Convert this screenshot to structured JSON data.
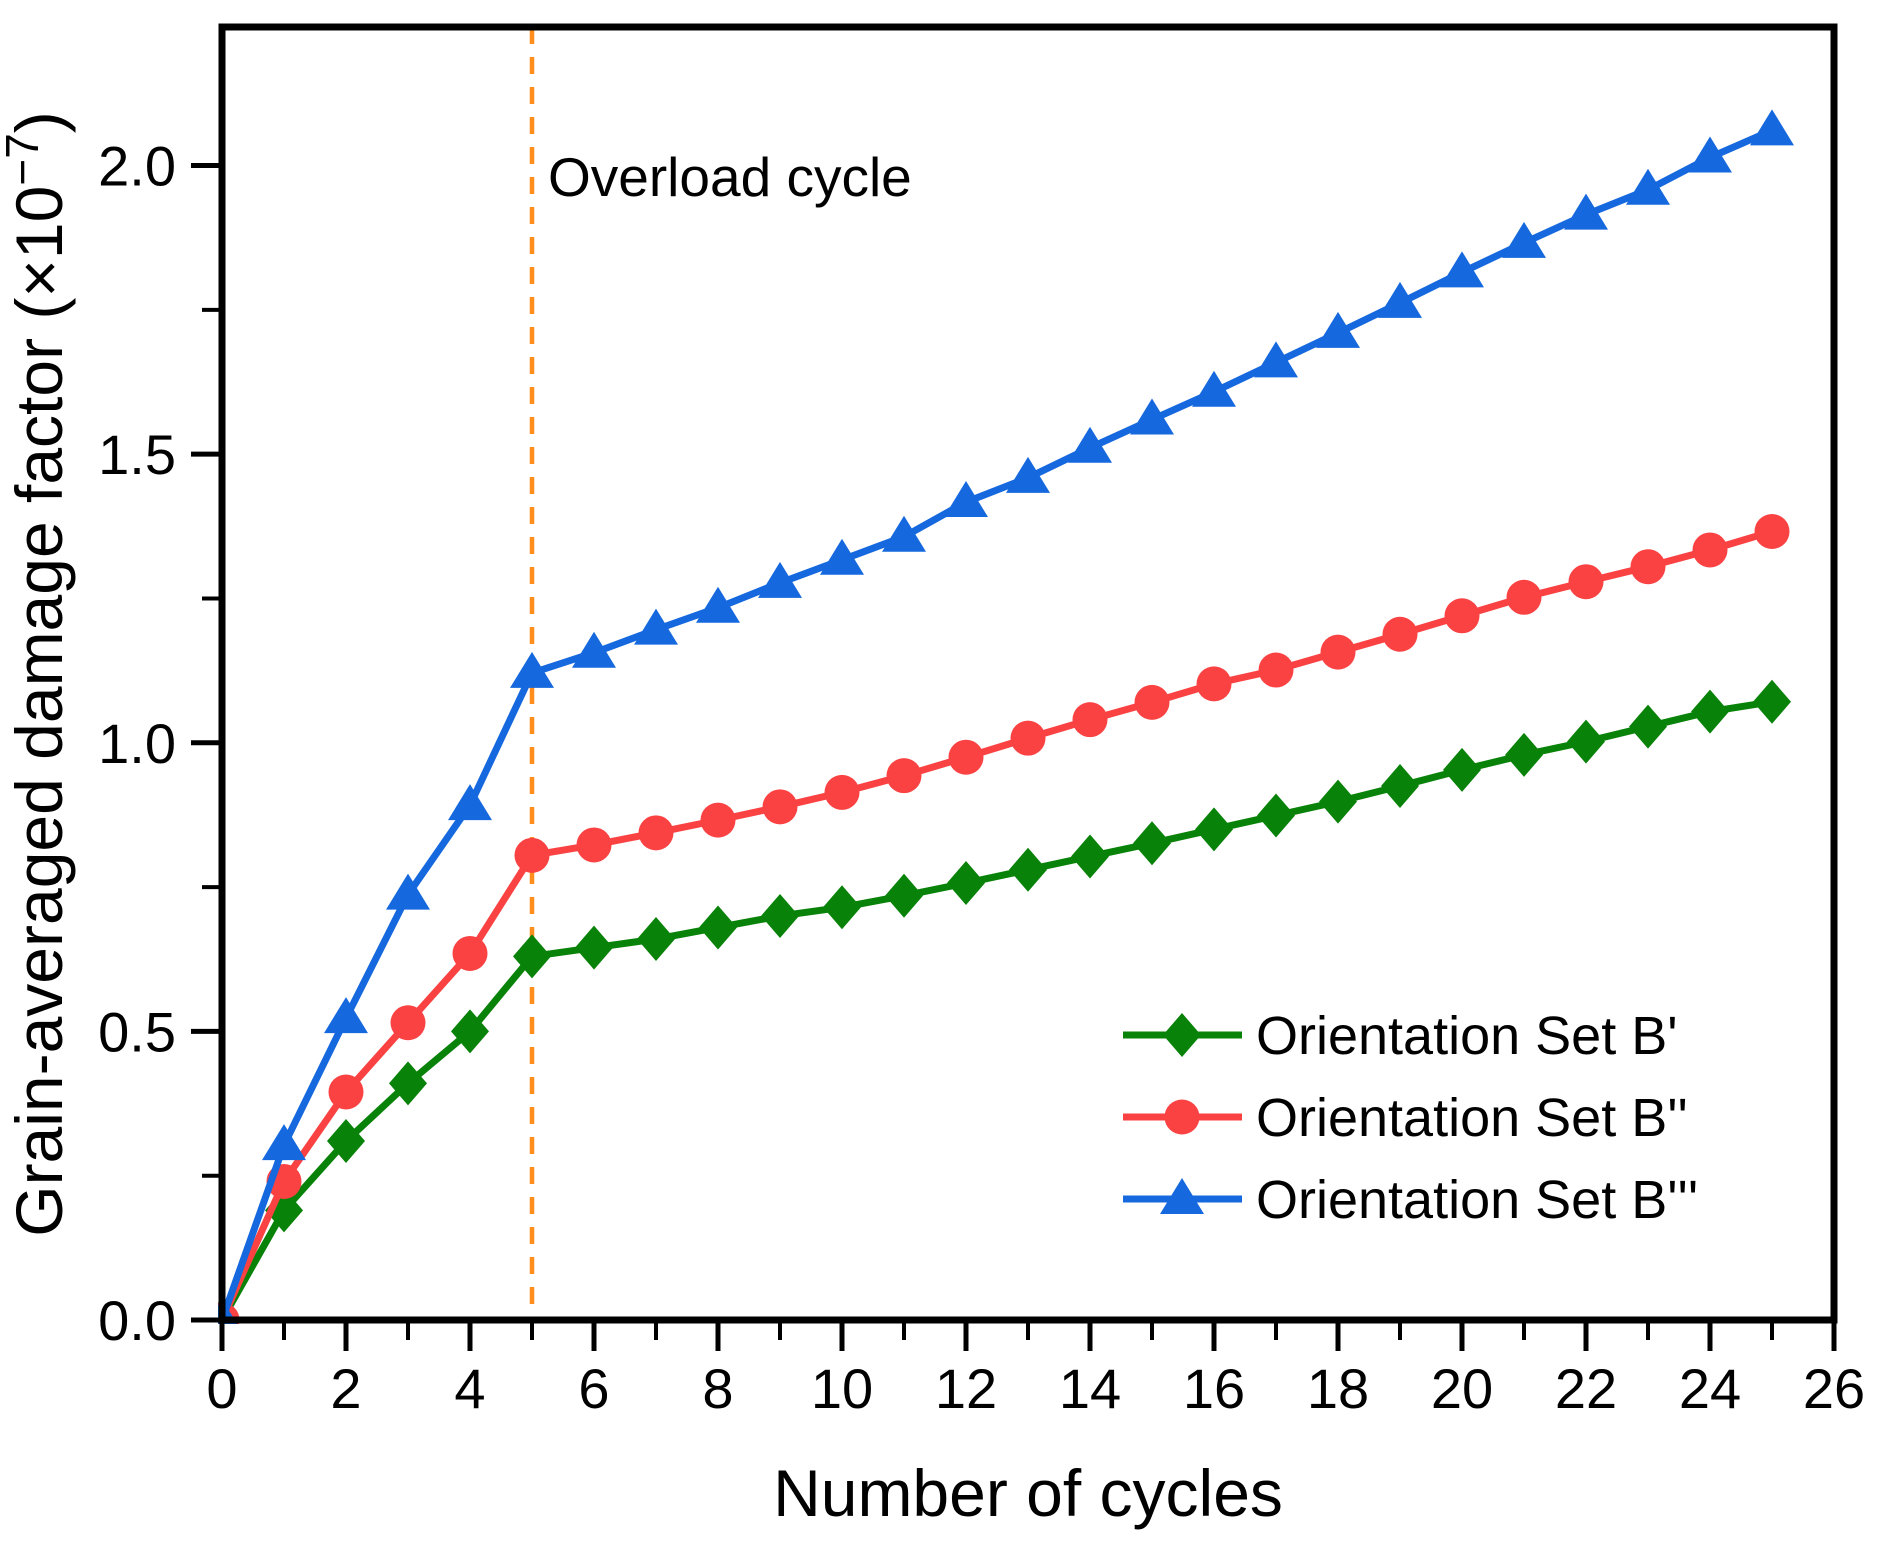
{
  "chart_data": {
    "type": "line",
    "title": "",
    "xlabel": "Number of cycles",
    "ylabel": "Grain-averaged damage factor (×10⁻⁷)",
    "ylabel_parts": {
      "prefix": "Grain-averaged damage factor (×10",
      "superscript": "−7",
      "suffix": ")"
    },
    "xlim": [
      0,
      26
    ],
    "ylim": [
      0,
      2.24
    ],
    "grid": false,
    "legend_position": "lower right",
    "x_major_ticks": [
      0,
      2,
      4,
      6,
      8,
      10,
      12,
      14,
      16,
      18,
      20,
      22,
      24,
      26
    ],
    "x_major_tick_labels": [
      "0",
      "2",
      "4",
      "6",
      "8",
      "10",
      "12",
      "14",
      "16",
      "18",
      "20",
      "22",
      "24",
      "26"
    ],
    "x_minor_ticks": [
      1,
      3,
      5,
      7,
      9,
      11,
      13,
      15,
      17,
      19,
      21,
      23,
      25
    ],
    "y_major_ticks": [
      0,
      0.5,
      1.0,
      1.5,
      2.0
    ],
    "y_major_tick_labels": [
      "0.0",
      "0.5",
      "1.0",
      "1.5",
      "2.0"
    ],
    "y_minor_ticks": [
      0.25,
      0.75,
      1.25,
      1.75
    ],
    "x": [
      0,
      1,
      2,
      3,
      4,
      5,
      6,
      7,
      8,
      9,
      10,
      11,
      12,
      13,
      14,
      15,
      16,
      17,
      18,
      19,
      20,
      21,
      22,
      23,
      24,
      25
    ],
    "series": [
      {
        "name": "Orientation Set B'",
        "marker": "diamond",
        "color": "#088208",
        "values": [
          0,
          0.19,
          0.31,
          0.41,
          0.5,
          0.63,
          0.645,
          0.66,
          0.68,
          0.7,
          0.715,
          0.735,
          0.757,
          0.78,
          0.803,
          0.826,
          0.85,
          0.874,
          0.898,
          0.925,
          0.953,
          0.979,
          1.002,
          1.028,
          1.054,
          1.071
        ]
      },
      {
        "name": "Orientation Set B''",
        "marker": "circle",
        "color": "#FA4243",
        "values": [
          0,
          0.24,
          0.395,
          0.515,
          0.635,
          0.805,
          0.823,
          0.844,
          0.866,
          0.889,
          0.914,
          0.943,
          0.975,
          1.008,
          1.04,
          1.07,
          1.102,
          1.126,
          1.157,
          1.188,
          1.22,
          1.252,
          1.279,
          1.305,
          1.334,
          1.366
        ]
      },
      {
        "name": "Orientation Set B'''",
        "marker": "triangle",
        "color": "#1568DD",
        "values": [
          0,
          0.303,
          0.523,
          0.737,
          0.892,
          1.121,
          1.156,
          1.196,
          1.234,
          1.277,
          1.317,
          1.357,
          1.417,
          1.459,
          1.511,
          1.56,
          1.608,
          1.659,
          1.71,
          1.762,
          1.815,
          1.866,
          1.915,
          1.958,
          2.014,
          2.061
        ]
      }
    ],
    "annotation": {
      "text": "Overload cycle",
      "x": 5,
      "line_color": "#FF8E1C",
      "line_style": "dashed"
    }
  },
  "colors": {
    "axis": "#000000",
    "text": "#000000",
    "background": "#FFFFFF",
    "overload_line": "#FF8E1C"
  }
}
